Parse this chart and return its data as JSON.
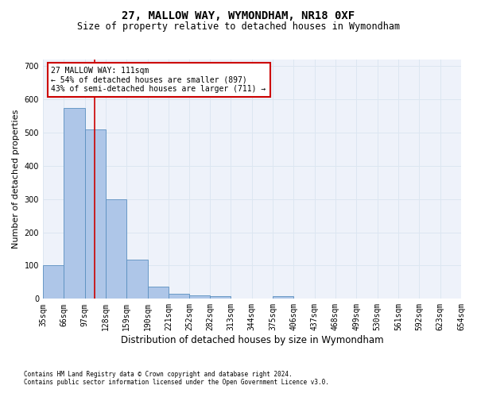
{
  "title": "27, MALLOW WAY, WYMONDHAM, NR18 0XF",
  "subtitle": "Size of property relative to detached houses in Wymondham",
  "xlabel": "Distribution of detached houses by size in Wymondham",
  "ylabel": "Number of detached properties",
  "footnote1": "Contains HM Land Registry data © Crown copyright and database right 2024.",
  "footnote2": "Contains public sector information licensed under the Open Government Licence v3.0.",
  "bar_edges": [
    35,
    66,
    97,
    128,
    159,
    190,
    221,
    252,
    282,
    313,
    344,
    375,
    406,
    437,
    468,
    499,
    530,
    561,
    592,
    623,
    654
  ],
  "bar_heights": [
    100,
    575,
    510,
    300,
    117,
    37,
    15,
    10,
    7,
    0,
    0,
    7,
    0,
    0,
    0,
    0,
    0,
    0,
    0,
    0
  ],
  "bar_color": "#aec6e8",
  "bar_edge_color": "#5a8fc0",
  "red_line_x": 111,
  "annotation_text": "27 MALLOW WAY: 111sqm\n← 54% of detached houses are smaller (897)\n43% of semi-detached houses are larger (711) →",
  "annotation_box_color": "#ffffff",
  "annotation_box_edge_color": "#cc0000",
  "grid_color": "#dce6f1",
  "background_color": "#eef2fa",
  "ylim": [
    0,
    720
  ],
  "yticks": [
    0,
    100,
    200,
    300,
    400,
    500,
    600,
    700
  ],
  "title_fontsize": 10,
  "subtitle_fontsize": 8.5,
  "xlabel_fontsize": 8.5,
  "ylabel_fontsize": 8,
  "tick_fontsize": 7,
  "annot_fontsize": 7,
  "footnote_fontsize": 5.5
}
